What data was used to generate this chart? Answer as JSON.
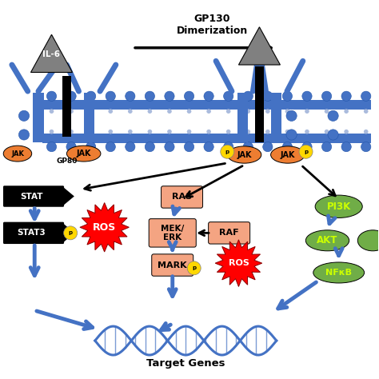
{
  "bg_color": "#ffffff",
  "blue": "#4472C4",
  "orange": "#ED7D31",
  "green": "#70AD47",
  "red": "#FF0000",
  "salmon": "#F4A482",
  "black": "#000000",
  "gold": "#FFD700",
  "white": "#ffffff",
  "yellow_green": "#CCFF00",
  "gp130_text": "GP130\nDimerization",
  "il6_text": "IL-6",
  "gp80_text": "GP80",
  "target_genes_text": "Target Genes"
}
